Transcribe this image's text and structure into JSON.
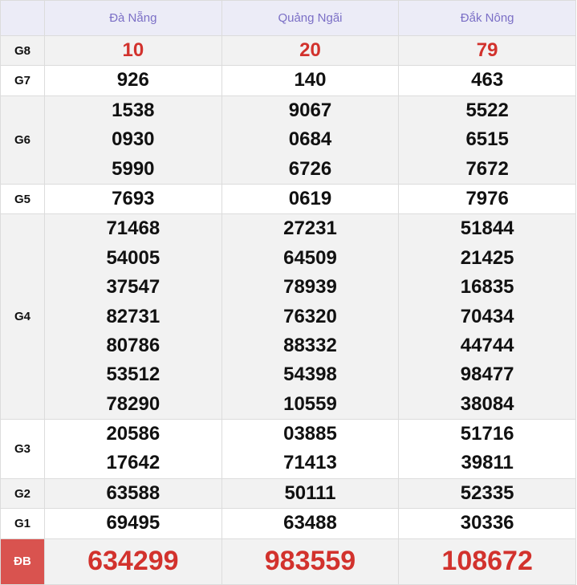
{
  "header": {
    "provinces": [
      "Đà Nẵng",
      "Quảng Ngãi",
      "Đắk Nông"
    ]
  },
  "colors": {
    "header_text": "#7b6fc6",
    "highlight": "#d2322d",
    "db_label_bg": "#d9534f"
  },
  "prizes": [
    {
      "label": "G8",
      "values": [
        [
          "10"
        ],
        [
          "20"
        ],
        [
          "79"
        ]
      ]
    },
    {
      "label": "G7",
      "values": [
        [
          "926"
        ],
        [
          "140"
        ],
        [
          "463"
        ]
      ]
    },
    {
      "label": "G6",
      "values": [
        [
          "1538",
          "0930",
          "5990"
        ],
        [
          "9067",
          "0684",
          "6726"
        ],
        [
          "5522",
          "6515",
          "7672"
        ]
      ]
    },
    {
      "label": "G5",
      "values": [
        [
          "7693"
        ],
        [
          "0619"
        ],
        [
          "7976"
        ]
      ]
    },
    {
      "label": "G4",
      "values": [
        [
          "71468",
          "54005",
          "37547",
          "82731",
          "80786",
          "53512",
          "78290"
        ],
        [
          "27231",
          "64509",
          "78939",
          "76320",
          "88332",
          "54398",
          "10559"
        ],
        [
          "51844",
          "21425",
          "16835",
          "70434",
          "44744",
          "98477",
          "38084"
        ]
      ]
    },
    {
      "label": "G3",
      "values": [
        [
          "20586",
          "17642"
        ],
        [
          "03885",
          "71413"
        ],
        [
          "51716",
          "39811"
        ]
      ]
    },
    {
      "label": "G2",
      "values": [
        [
          "63588"
        ],
        [
          "50111"
        ],
        [
          "52335"
        ]
      ]
    },
    {
      "label": "G1",
      "values": [
        [
          "69495"
        ],
        [
          "63488"
        ],
        [
          "30336"
        ]
      ]
    },
    {
      "label": "ĐB",
      "values": [
        [
          "634299"
        ],
        [
          "983559"
        ],
        [
          "108672"
        ]
      ]
    }
  ]
}
